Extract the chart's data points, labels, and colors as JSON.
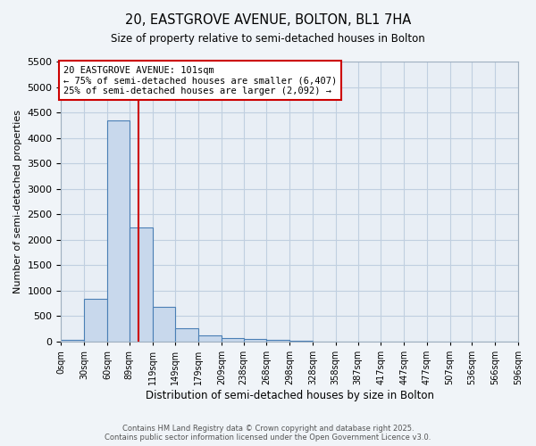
{
  "title": "20, EASTGROVE AVENUE, BOLTON, BL1 7HA",
  "subtitle": "Size of property relative to semi-detached houses in Bolton",
  "xlabel": "Distribution of semi-detached houses by size in Bolton",
  "ylabel": "Number of semi-detached properties",
  "bin_edges": [
    0,
    30,
    60,
    89,
    119,
    149,
    179,
    209,
    238,
    268,
    298,
    328,
    358,
    387,
    417,
    447,
    477,
    507,
    536,
    566,
    596
  ],
  "bin_labels": [
    "0sqm",
    "30sqm",
    "60sqm",
    "89sqm",
    "119sqm",
    "149sqm",
    "179sqm",
    "209sqm",
    "238sqm",
    "268sqm",
    "298sqm",
    "328sqm",
    "358sqm",
    "387sqm",
    "417sqm",
    "447sqm",
    "477sqm",
    "507sqm",
    "536sqm",
    "566sqm",
    "596sqm"
  ],
  "bar_heights": [
    30,
    850,
    4350,
    2250,
    680,
    260,
    120,
    65,
    55,
    35,
    10,
    5,
    2,
    1,
    0,
    0,
    0,
    0,
    0,
    0
  ],
  "bar_color": "#c8d8ec",
  "bar_edge_color": "#4a7fb5",
  "property_line_x": 101,
  "annotation_text": "20 EASTGROVE AVENUE: 101sqm\n← 75% of semi-detached houses are smaller (6,407)\n25% of semi-detached houses are larger (2,092) →",
  "annotation_box_color": "#cc0000",
  "ylim": [
    0,
    5500
  ],
  "yticks": [
    0,
    500,
    1000,
    1500,
    2000,
    2500,
    3000,
    3500,
    4000,
    4500,
    5000,
    5500
  ],
  "grid_color": "#c0cfe0",
  "plot_bg_color": "#e8eef5",
  "fig_bg_color": "#f0f4f8",
  "footer_line1": "Contains HM Land Registry data © Crown copyright and database right 2025.",
  "footer_line2": "Contains public sector information licensed under the Open Government Licence v3.0."
}
